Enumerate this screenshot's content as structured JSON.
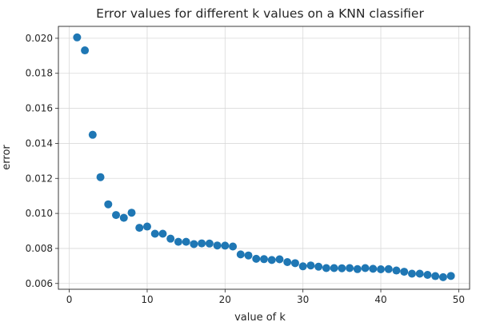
{
  "chart_data": {
    "type": "scatter",
    "title": "Error values for different k values on a KNN classifier",
    "xlabel": "value of k",
    "ylabel": "error",
    "xlim": [
      -1.4,
      51.4
    ],
    "ylim": [
      0.00567,
      0.02068
    ],
    "xticks": [
      0,
      10,
      20,
      30,
      40,
      50
    ],
    "yticks": [
      0.006,
      0.008,
      0.01,
      0.012,
      0.014,
      0.016,
      0.018,
      0.02
    ],
    "xtick_labels": [
      "0",
      "10",
      "20",
      "30",
      "40",
      "50"
    ],
    "ytick_labels": [
      "0.006",
      "0.008",
      "0.010",
      "0.012",
      "0.014",
      "0.016",
      "0.018",
      "0.020"
    ],
    "grid": true,
    "marker_color": "#1f77b4",
    "x": [
      1,
      2,
      3,
      4,
      5,
      6,
      7,
      8,
      9,
      10,
      11,
      12,
      13,
      14,
      15,
      16,
      17,
      18,
      19,
      20,
      21,
      22,
      23,
      24,
      25,
      26,
      27,
      28,
      29,
      30,
      31,
      32,
      33,
      34,
      35,
      36,
      37,
      38,
      39,
      40,
      41,
      42,
      43,
      44,
      45,
      46,
      47,
      48,
      49
    ],
    "y": [
      0.02005,
      0.01931,
      0.01449,
      0.01207,
      0.01052,
      0.00991,
      0.00975,
      0.01004,
      0.00918,
      0.00925,
      0.00884,
      0.00884,
      0.00856,
      0.00838,
      0.00838,
      0.00825,
      0.00829,
      0.00828,
      0.00817,
      0.00816,
      0.00811,
      0.00766,
      0.0076,
      0.00741,
      0.00739,
      0.00734,
      0.00738,
      0.00722,
      0.00716,
      0.00698,
      0.00703,
      0.00696,
      0.00688,
      0.00688,
      0.00687,
      0.00688,
      0.00682,
      0.00688,
      0.00684,
      0.00681,
      0.00682,
      0.00674,
      0.00667,
      0.00656,
      0.00656,
      0.00649,
      0.00642,
      0.00636,
      0.00643
    ]
  }
}
